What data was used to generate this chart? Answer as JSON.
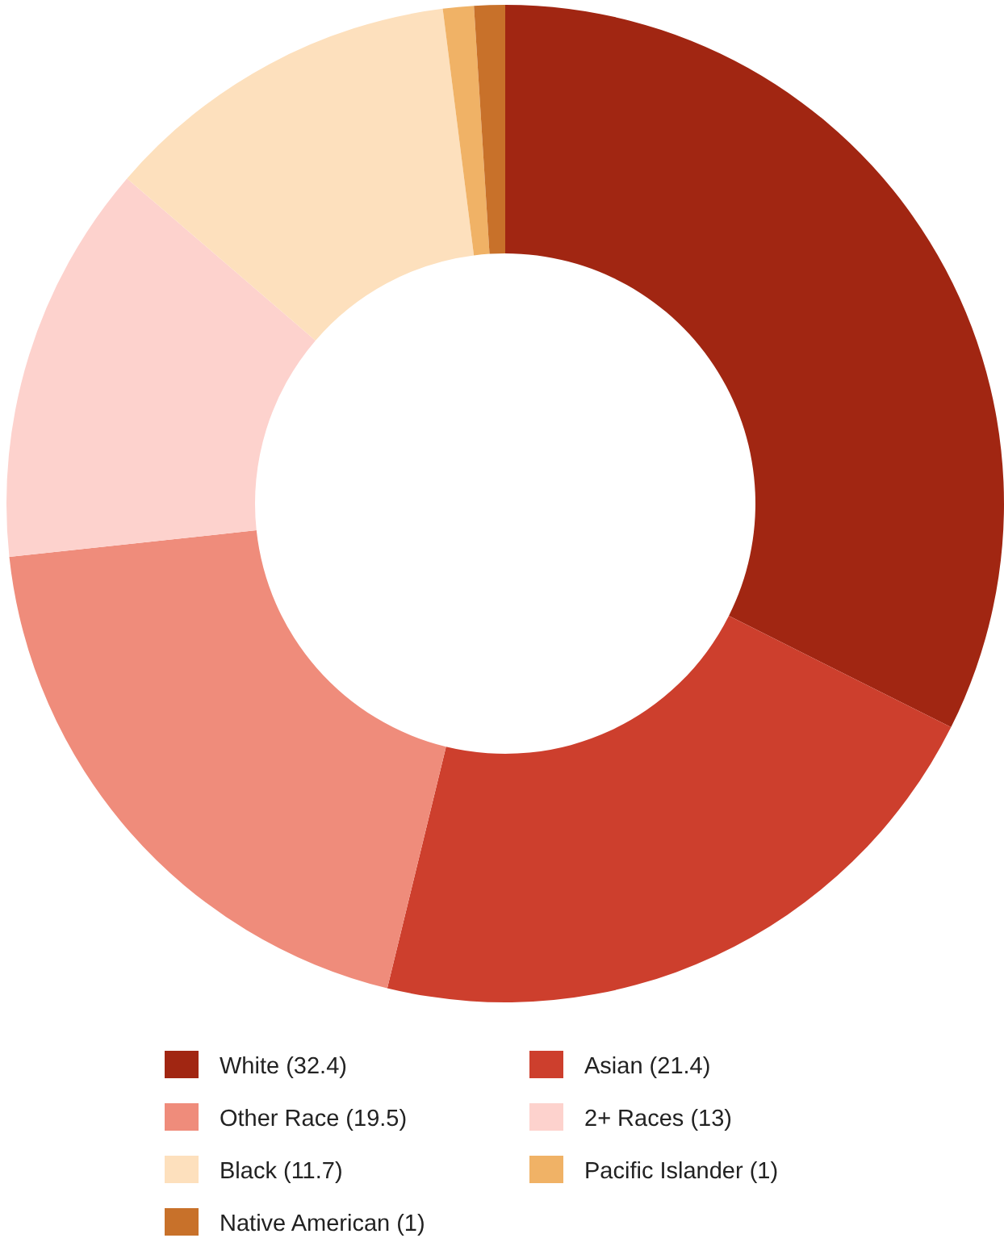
{
  "chart_data": {
    "type": "donut",
    "categories": [
      "White (32.4)",
      "Asian (21.4)",
      "Other Race (19.5)",
      "2+ Races (13)",
      "Black (11.7)",
      "Pacific Islander (1)",
      "Native American (1)"
    ],
    "values": [
      32.4,
      21.4,
      19.5,
      13,
      11.7,
      1,
      1
    ],
    "colors": [
      "#a12612",
      "#cd3f2d",
      "#ef8c7b",
      "#fdd2cd",
      "#fde0bd",
      "#f0b266",
      "#c8712a"
    ],
    "legend": "bottom"
  }
}
